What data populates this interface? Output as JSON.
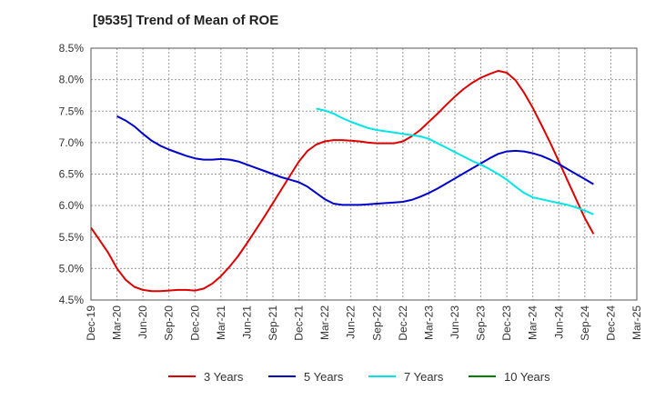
{
  "chart_data": {
    "type": "line",
    "title": "[9535]  Trend of Mean of ROE",
    "xlabel": "",
    "ylabel": "",
    "x_tick_labels": [
      "Dec-19",
      "Mar-20",
      "Jun-20",
      "Sep-20",
      "Dec-20",
      "Mar-21",
      "Jun-21",
      "Sep-21",
      "Dec-21",
      "Mar-22",
      "Jun-22",
      "Sep-22",
      "Dec-22",
      "Mar-23",
      "Jun-23",
      "Sep-23",
      "Dec-23",
      "Mar-24",
      "Jun-24",
      "Sep-24",
      "Dec-24",
      "Mar-25"
    ],
    "y_tick_labels": [
      "4.5%",
      "5.0%",
      "5.5%",
      "6.0%",
      "6.5%",
      "7.0%",
      "7.5%",
      "8.0%",
      "8.5%"
    ],
    "ylim": [
      4.5,
      8.5
    ],
    "y_ticks": [
      4.5,
      5.0,
      5.5,
      6.0,
      6.5,
      7.0,
      7.5,
      8.0,
      8.5
    ],
    "grid": true,
    "legend_position": "bottom",
    "series": [
      {
        "name": "3 Years",
        "color": "#dd0000",
        "points": [
          [
            0,
            5.65
          ],
          [
            1,
            5.45
          ],
          [
            2,
            5.25
          ],
          [
            3,
            5.0
          ],
          [
            4,
            4.82
          ],
          [
            5,
            4.71
          ],
          [
            6,
            4.66
          ],
          [
            7,
            4.64
          ],
          [
            8,
            4.64
          ],
          [
            9,
            4.65
          ],
          [
            10,
            4.66
          ],
          [
            11,
            4.66
          ],
          [
            12,
            4.65
          ],
          [
            13,
            4.68
          ],
          [
            14,
            4.76
          ],
          [
            15,
            4.88
          ],
          [
            16,
            5.03
          ],
          [
            17,
            5.2
          ],
          [
            18,
            5.4
          ],
          [
            19,
            5.61
          ],
          [
            20,
            5.82
          ],
          [
            21,
            6.04
          ],
          [
            22,
            6.26
          ],
          [
            23,
            6.48
          ],
          [
            24,
            6.7
          ],
          [
            25,
            6.87
          ],
          [
            26,
            6.97
          ],
          [
            27,
            7.02
          ],
          [
            28,
            7.04
          ],
          [
            29,
            7.04
          ],
          [
            30,
            7.03
          ],
          [
            31,
            7.02
          ],
          [
            32,
            7.0
          ],
          [
            33,
            6.99
          ],
          [
            34,
            6.99
          ],
          [
            35,
            6.99
          ],
          [
            36,
            7.02
          ],
          [
            37,
            7.1
          ],
          [
            38,
            7.2
          ],
          [
            39,
            7.33
          ],
          [
            40,
            7.46
          ],
          [
            41,
            7.6
          ],
          [
            42,
            7.73
          ],
          [
            43,
            7.85
          ],
          [
            44,
            7.95
          ],
          [
            45,
            8.03
          ],
          [
            46,
            8.09
          ],
          [
            47,
            8.14
          ],
          [
            48,
            8.11
          ],
          [
            49,
            7.99
          ],
          [
            50,
            7.79
          ],
          [
            51,
            7.55
          ],
          [
            52,
            7.28
          ],
          [
            53,
            7.0
          ],
          [
            54,
            6.7
          ],
          [
            55,
            6.4
          ],
          [
            56,
            6.1
          ],
          [
            57,
            5.8
          ],
          [
            58,
            5.55
          ]
        ]
      },
      {
        "name": "5 Years",
        "color": "#0000cc",
        "points": [
          [
            3,
            7.42
          ],
          [
            4,
            7.35
          ],
          [
            5,
            7.26
          ],
          [
            6,
            7.14
          ],
          [
            7,
            7.03
          ],
          [
            8,
            6.95
          ],
          [
            9,
            6.89
          ],
          [
            10,
            6.84
          ],
          [
            11,
            6.79
          ],
          [
            12,
            6.75
          ],
          [
            13,
            6.73
          ],
          [
            14,
            6.73
          ],
          [
            15,
            6.74
          ],
          [
            16,
            6.73
          ],
          [
            17,
            6.7
          ],
          [
            18,
            6.65
          ],
          [
            19,
            6.6
          ],
          [
            20,
            6.55
          ],
          [
            21,
            6.5
          ],
          [
            22,
            6.45
          ],
          [
            23,
            6.41
          ],
          [
            24,
            6.37
          ],
          [
            25,
            6.3
          ],
          [
            26,
            6.2
          ],
          [
            27,
            6.1
          ],
          [
            28,
            6.03
          ],
          [
            29,
            6.01
          ],
          [
            30,
            6.01
          ],
          [
            31,
            6.01
          ],
          [
            32,
            6.02
          ],
          [
            33,
            6.03
          ],
          [
            34,
            6.04
          ],
          [
            35,
            6.05
          ],
          [
            36,
            6.06
          ],
          [
            37,
            6.09
          ],
          [
            38,
            6.14
          ],
          [
            39,
            6.2
          ],
          [
            40,
            6.27
          ],
          [
            41,
            6.35
          ],
          [
            42,
            6.43
          ],
          [
            43,
            6.51
          ],
          [
            44,
            6.59
          ],
          [
            45,
            6.67
          ],
          [
            46,
            6.75
          ],
          [
            47,
            6.82
          ],
          [
            48,
            6.86
          ],
          [
            49,
            6.87
          ],
          [
            50,
            6.86
          ],
          [
            51,
            6.83
          ],
          [
            52,
            6.79
          ],
          [
            53,
            6.73
          ],
          [
            54,
            6.66
          ],
          [
            55,
            6.58
          ],
          [
            56,
            6.5
          ],
          [
            57,
            6.42
          ],
          [
            58,
            6.34
          ]
        ]
      },
      {
        "name": "7 Years",
        "color": "#00e5e5",
        "points": [
          [
            26,
            7.54
          ],
          [
            27,
            7.51
          ],
          [
            28,
            7.46
          ],
          [
            29,
            7.39
          ],
          [
            30,
            7.33
          ],
          [
            31,
            7.28
          ],
          [
            32,
            7.23
          ],
          [
            33,
            7.2
          ],
          [
            34,
            7.18
          ],
          [
            35,
            7.16
          ],
          [
            36,
            7.14
          ],
          [
            37,
            7.12
          ],
          [
            38,
            7.1
          ],
          [
            39,
            7.06
          ],
          [
            40,
            6.99
          ],
          [
            41,
            6.92
          ],
          [
            42,
            6.85
          ],
          [
            43,
            6.78
          ],
          [
            44,
            6.71
          ],
          [
            45,
            6.65
          ],
          [
            46,
            6.58
          ],
          [
            47,
            6.5
          ],
          [
            48,
            6.41
          ],
          [
            49,
            6.3
          ],
          [
            50,
            6.2
          ],
          [
            51,
            6.13
          ],
          [
            52,
            6.1
          ],
          [
            53,
            6.07
          ],
          [
            54,
            6.04
          ],
          [
            55,
            6.01
          ],
          [
            56,
            5.97
          ],
          [
            57,
            5.92
          ],
          [
            58,
            5.86
          ]
        ]
      },
      {
        "name": "10 Years",
        "color": "#008000",
        "points": []
      }
    ]
  }
}
